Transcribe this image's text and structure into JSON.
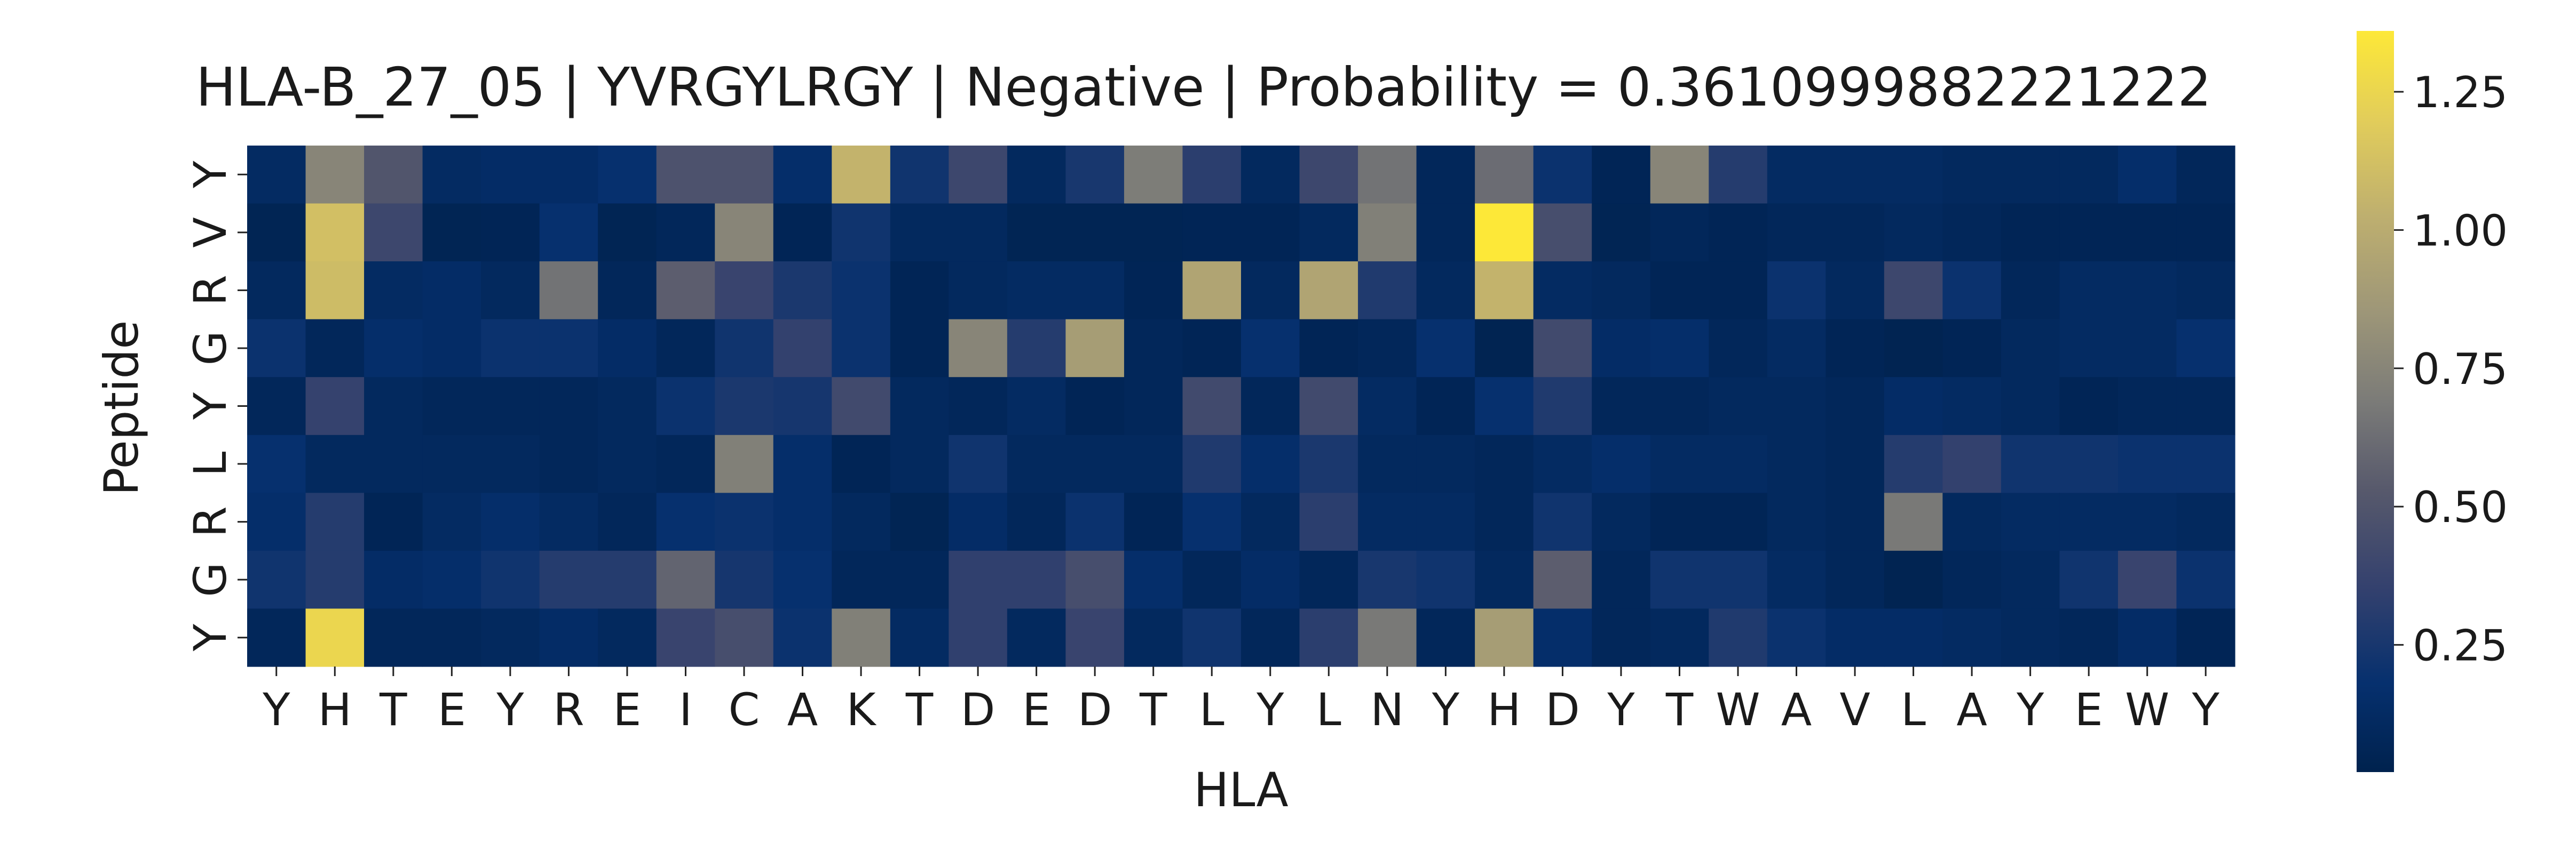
{
  "chart_data": {
    "type": "heatmap",
    "title": "HLA-B_27_05 | YVRGYLRGY | Negative | Probability = 0.3610999882221222",
    "xlabel": "HLA",
    "ylabel": "Peptide",
    "x_tick_labels": [
      "Y",
      "H",
      "T",
      "E",
      "Y",
      "R",
      "E",
      "I",
      "C",
      "A",
      "K",
      "T",
      "D",
      "E",
      "D",
      "T",
      "L",
      "Y",
      "L",
      "N",
      "Y",
      "H",
      "D",
      "Y",
      "T",
      "W",
      "A",
      "V",
      "L",
      "A",
      "Y",
      "E",
      "W",
      "Y"
    ],
    "y_tick_labels": [
      "Y",
      "V",
      "R",
      "G",
      "Y",
      "L",
      "R",
      "G",
      "Y"
    ],
    "colormap": "cividis",
    "colorbar": {
      "vmin": 0.02,
      "vmax": 1.36,
      "ticks": [
        0.25,
        0.5,
        0.75,
        1.0,
        1.25
      ],
      "tick_labels": [
        "0.25",
        "0.50",
        "0.75",
        "1.00",
        "1.25"
      ]
    },
    "values": [
      [
        0.12,
        0.75,
        0.5,
        0.12,
        0.14,
        0.14,
        0.18,
        0.48,
        0.48,
        0.16,
        1.05,
        0.22,
        0.4,
        0.1,
        0.25,
        0.7,
        0.32,
        0.1,
        0.4,
        0.65,
        0.08,
        0.62,
        0.2,
        0.06,
        0.75,
        0.3,
        0.12,
        0.12,
        0.12,
        0.1,
        0.1,
        0.1,
        0.16,
        0.08
      ],
      [
        0.05,
        1.12,
        0.4,
        0.05,
        0.06,
        0.18,
        0.05,
        0.08,
        0.75,
        0.06,
        0.22,
        0.1,
        0.1,
        0.05,
        0.05,
        0.05,
        0.06,
        0.06,
        0.1,
        0.72,
        0.08,
        1.36,
        0.45,
        0.05,
        0.08,
        0.06,
        0.08,
        0.08,
        0.1,
        0.08,
        0.06,
        0.06,
        0.06,
        0.06
      ],
      [
        0.1,
        1.1,
        0.12,
        0.14,
        0.1,
        0.65,
        0.08,
        0.55,
        0.38,
        0.26,
        0.2,
        0.06,
        0.1,
        0.12,
        0.12,
        0.06,
        0.95,
        0.1,
        0.95,
        0.28,
        0.1,
        1.05,
        0.12,
        0.1,
        0.06,
        0.06,
        0.2,
        0.1,
        0.4,
        0.2,
        0.08,
        0.12,
        0.12,
        0.1
      ],
      [
        0.2,
        0.08,
        0.16,
        0.14,
        0.2,
        0.2,
        0.14,
        0.08,
        0.22,
        0.35,
        0.2,
        0.06,
        0.75,
        0.3,
        0.9,
        0.08,
        0.06,
        0.18,
        0.06,
        0.08,
        0.18,
        0.04,
        0.42,
        0.14,
        0.16,
        0.08,
        0.12,
        0.06,
        0.04,
        0.06,
        0.1,
        0.12,
        0.12,
        0.18
      ],
      [
        0.08,
        0.36,
        0.1,
        0.08,
        0.08,
        0.08,
        0.1,
        0.2,
        0.26,
        0.24,
        0.42,
        0.1,
        0.08,
        0.12,
        0.06,
        0.08,
        0.42,
        0.08,
        0.42,
        0.12,
        0.06,
        0.18,
        0.28,
        0.08,
        0.08,
        0.1,
        0.1,
        0.08,
        0.14,
        0.12,
        0.1,
        0.06,
        0.08,
        0.08
      ],
      [
        0.18,
        0.1,
        0.1,
        0.1,
        0.1,
        0.08,
        0.1,
        0.08,
        0.72,
        0.16,
        0.06,
        0.1,
        0.22,
        0.1,
        0.1,
        0.1,
        0.28,
        0.16,
        0.26,
        0.1,
        0.1,
        0.08,
        0.12,
        0.16,
        0.12,
        0.12,
        0.1,
        0.08,
        0.3,
        0.35,
        0.22,
        0.22,
        0.2,
        0.2
      ],
      [
        0.16,
        0.3,
        0.06,
        0.12,
        0.16,
        0.12,
        0.08,
        0.18,
        0.2,
        0.16,
        0.1,
        0.05,
        0.14,
        0.08,
        0.2,
        0.06,
        0.18,
        0.1,
        0.32,
        0.12,
        0.12,
        0.08,
        0.22,
        0.1,
        0.06,
        0.06,
        0.1,
        0.08,
        0.68,
        0.1,
        0.12,
        0.12,
        0.12,
        0.1
      ],
      [
        0.22,
        0.3,
        0.14,
        0.16,
        0.22,
        0.3,
        0.3,
        0.58,
        0.24,
        0.18,
        0.08,
        0.08,
        0.34,
        0.34,
        0.45,
        0.16,
        0.08,
        0.14,
        0.08,
        0.25,
        0.22,
        0.1,
        0.55,
        0.08,
        0.22,
        0.22,
        0.12,
        0.08,
        0.04,
        0.08,
        0.1,
        0.22,
        0.38,
        0.2
      ],
      [
        0.08,
        1.25,
        0.08,
        0.08,
        0.1,
        0.14,
        0.1,
        0.38,
        0.45,
        0.2,
        0.72,
        0.12,
        0.34,
        0.1,
        0.38,
        0.1,
        0.22,
        0.08,
        0.32,
        0.68,
        0.08,
        0.9,
        0.16,
        0.08,
        0.1,
        0.28,
        0.2,
        0.14,
        0.14,
        0.12,
        0.1,
        0.08,
        0.14,
        0.06
      ]
    ]
  }
}
